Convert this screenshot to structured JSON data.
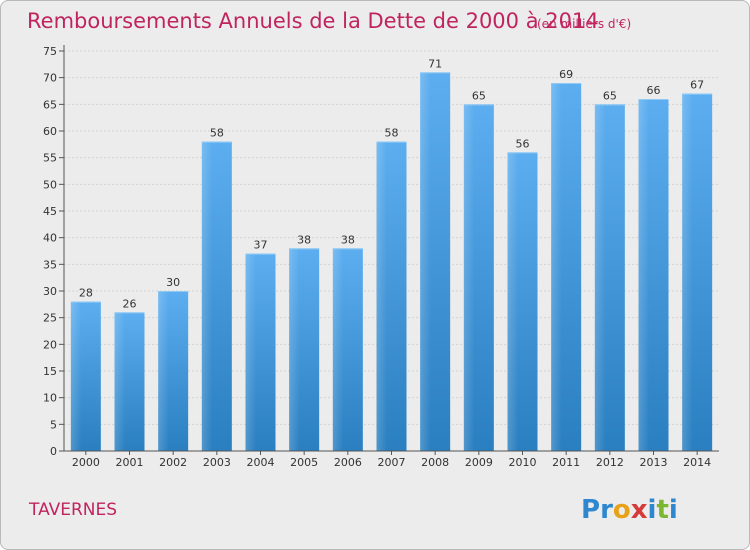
{
  "chart_data": {
    "type": "bar",
    "title": "Remboursements Annuels de la Dette de 2000 à 2014",
    "unit": "(en milliers d'€)",
    "categories": [
      "2000",
      "2001",
      "2002",
      "2003",
      "2004",
      "2005",
      "2006",
      "2007",
      "2008",
      "2009",
      "2010",
      "2011",
      "2012",
      "2013",
      "2014"
    ],
    "values": [
      28,
      26,
      30,
      58,
      37,
      38,
      38,
      58,
      71,
      65,
      56,
      69,
      65,
      66,
      67
    ],
    "ylim": [
      0,
      75
    ],
    "yticks": [
      0,
      5,
      10,
      15,
      20,
      25,
      30,
      35,
      40,
      45,
      50,
      55,
      60,
      65,
      70,
      75
    ],
    "xlabel": "",
    "ylabel": "",
    "grid": true,
    "bar_color": "#3c9be0"
  },
  "footer": {
    "town": "TAVERNES",
    "logo_text": "Proxiti"
  }
}
